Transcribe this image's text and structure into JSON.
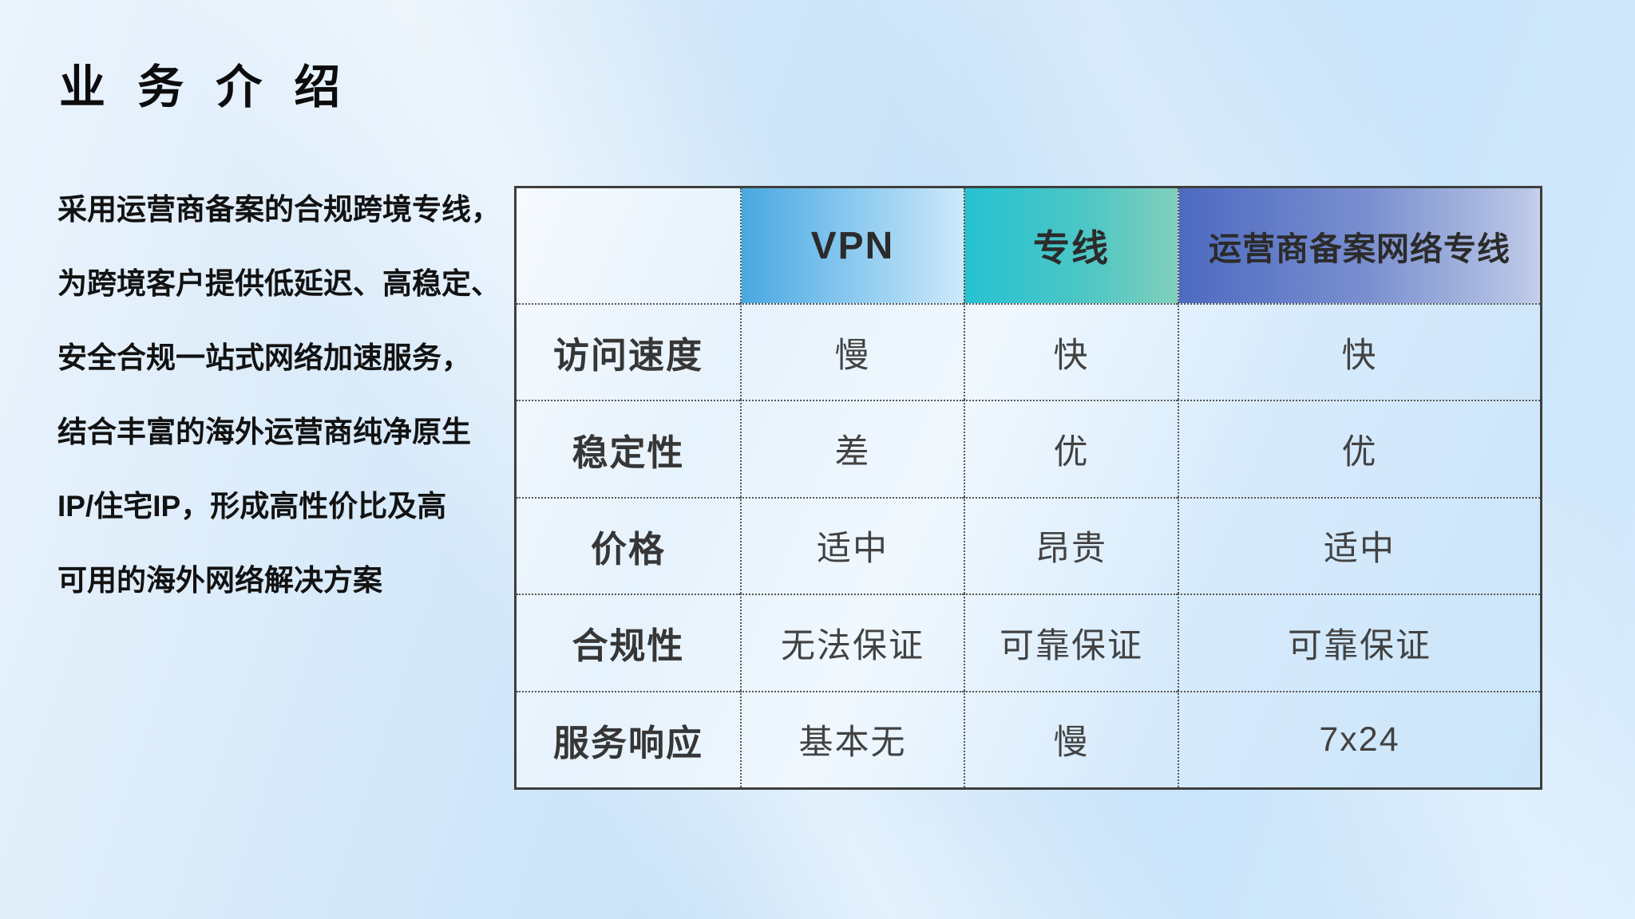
{
  "page": {
    "title": "业 务 介 绍"
  },
  "intro": {
    "lines": [
      "采用运营商备案的合规跨境专线，",
      "为跨境客户提供低延迟、高稳定、",
      "安全合规一站式网络加速服务，",
      "结合丰富的海外运营商纯净原生",
      "IP/住宅IP，形成高性价比及高",
      "可用的海外网络解决方案"
    ]
  },
  "table": {
    "columns": [
      "",
      "VPN",
      "专线",
      "运营商备案网络专线"
    ],
    "row_header_labels": [
      "访问速度",
      "稳定性",
      "价格",
      "合规性",
      "服务响应"
    ],
    "rows": [
      {
        "label": "访问速度",
        "vpn": "慢",
        "dedicated": "快",
        "carrier": "快"
      },
      {
        "label": "稳定性",
        "vpn": "差",
        "dedicated": "优",
        "carrier": "优"
      },
      {
        "label": "价格",
        "vpn": "适中",
        "dedicated": "昂贵",
        "carrier": "适中"
      },
      {
        "label": "合规性",
        "vpn": "无法保证",
        "dedicated": "可靠保证",
        "carrier": "可靠保证"
      },
      {
        "label": "服务响应",
        "vpn": "基本无",
        "dedicated": "慢",
        "carrier": "7x24"
      }
    ]
  },
  "colors": {
    "background_light": "#ecf4fc",
    "background_blue": "#c7e2f8",
    "header_vpn_start": "#49a8e0",
    "header_vpn_end": "#cde9fa",
    "header_dedicated_start": "#25c2d2",
    "header_dedicated_end": "#80cfbc",
    "header_carrier_start": "#4d6ac0",
    "header_carrier_end": "#c6d2ea",
    "title_text": "#0c0c0c",
    "body_text": "#424242",
    "border": "#3e3e3e"
  }
}
